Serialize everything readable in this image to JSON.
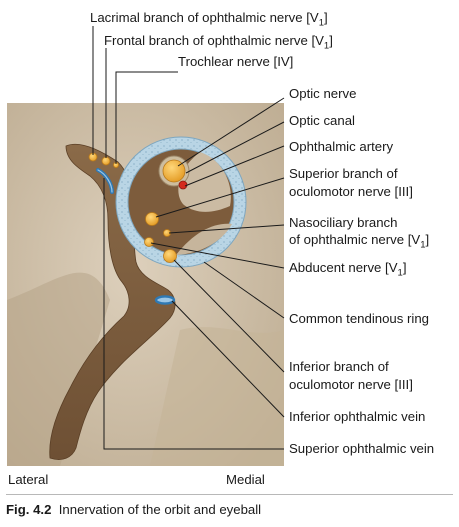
{
  "labels": {
    "lacrimal": {
      "text": "Lacrimal branch of ophthalmic nerve [V",
      "sub": "1",
      "tail": "]"
    },
    "frontal": {
      "text": "Frontal branch of ophthalmic nerve [V",
      "sub": "1",
      "tail": "]"
    },
    "trochlear": {
      "text": "Trochlear nerve [IV]"
    },
    "optic_nerve": {
      "text": "Optic nerve"
    },
    "optic_canal": {
      "text": "Optic canal"
    },
    "ophthalmic_artery": {
      "text": "Ophthalmic artery"
    },
    "superior_oculomotor_1": {
      "text": "Superior branch of"
    },
    "superior_oculomotor_2": {
      "text": "oculomotor nerve [III]"
    },
    "nasociliary_1": {
      "text": "Nasociliary branch"
    },
    "nasociliary_2": {
      "text": "of ophthalmic nerve [V",
      "sub": "1",
      "tail": "]"
    },
    "abducent": {
      "text": "Abducent nerve [V",
      "sub": "1",
      "tail": "]"
    },
    "tendinous_ring": {
      "text": "Common tendinous ring"
    },
    "inferior_oculomotor_1": {
      "text": "Inferior branch of"
    },
    "inferior_oculomotor_2": {
      "text": "oculomotor nerve [III]"
    },
    "inferior_vein": {
      "text": "Inferior ophthalmic vein"
    },
    "superior_vein": {
      "text": "Superior ophthalmic vein"
    }
  },
  "orientation": {
    "left": "Lateral",
    "right": "Medial"
  },
  "caption": {
    "number": "Fig. 4.2",
    "text": "Innervation of the orbit and eyeball"
  },
  "colors": {
    "background": "#cfc0a8",
    "fissure": "#7d5c3c",
    "ring": "#bcd6e4",
    "nerve": "#f2b33c",
    "artery": "#d42a1e",
    "vein": "#2f79b4",
    "leader": "#1a1a1a"
  }
}
